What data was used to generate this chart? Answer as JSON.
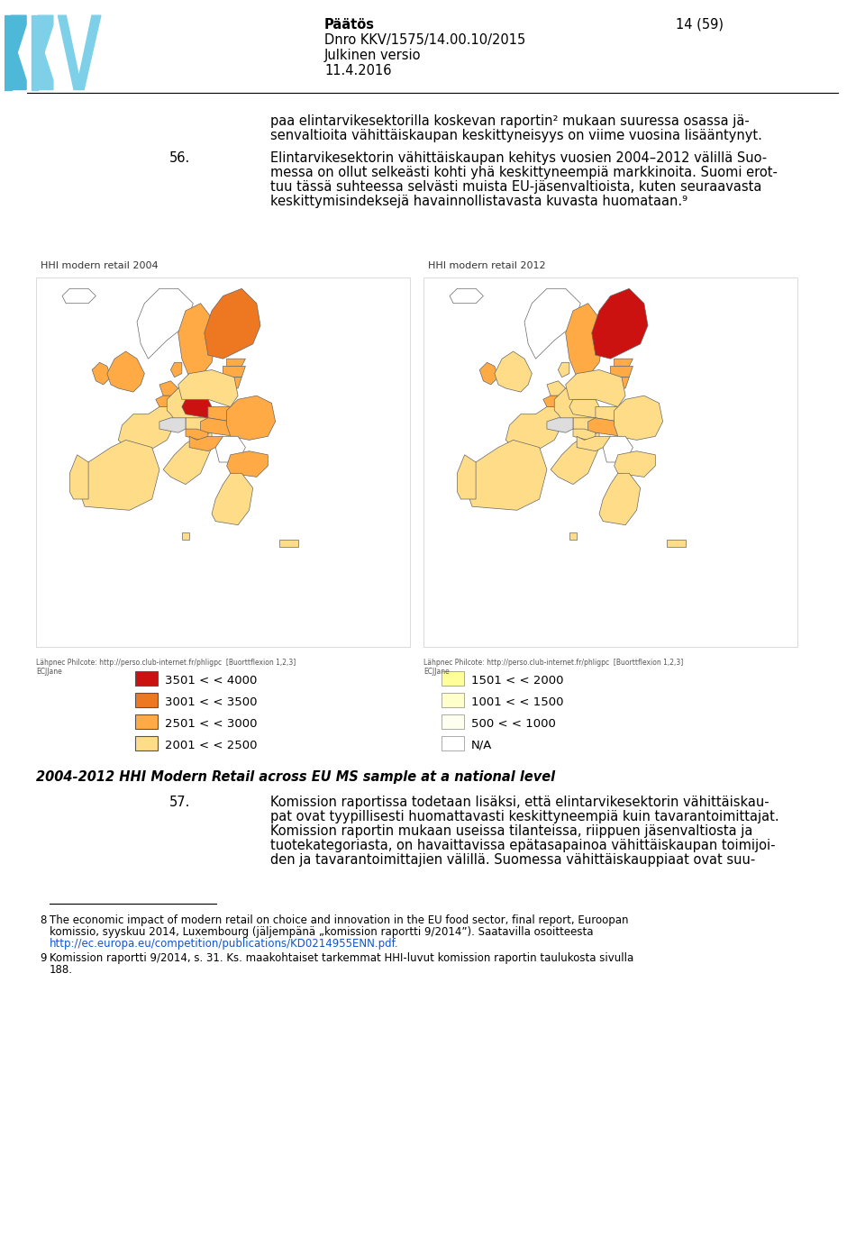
{
  "background_color": "#ffffff",
  "page_width": 9.6,
  "page_height": 13.73,
  "dpi": 100,
  "header": {
    "title_bold": "Päätös",
    "title_line2": "Dnro KKV/1575/14.00.10/2015",
    "title_line3": "Julkinen versio",
    "title_line4": "11.4.2016",
    "page_num": "14 (59)"
  },
  "map_label_left": "HHI modern retail 2004",
  "map_label_right": "HHI modern retail 2012",
  "source_text": "Lähpnec Philcote: http://perso.club-internet.fr/phligpc  [Buorttflexion 1,2,3]\nECJJane",
  "legend_left": [
    {
      "color": "#cc1111",
      "label": "3501 < < 4000"
    },
    {
      "color": "#ee7722",
      "label": "3001 < < 3500"
    },
    {
      "color": "#ffaa44",
      "label": "2501 < < 3000"
    },
    {
      "color": "#ffdd88",
      "label": "2001 < < 2500"
    }
  ],
  "legend_right": [
    {
      "color": "#ffff99",
      "label": "1501 < < 2000"
    },
    {
      "color": "#ffffcc",
      "label": "1001 < < 1500"
    },
    {
      "color": "#fffff0",
      "label": "500 < < 1000"
    },
    {
      "color": "#ffffff",
      "label": "N/A"
    }
  ],
  "map_caption": "2004-2012 HHI Modern Retail across EU MS sample at a national level",
  "body_text_1_lines": [
    "paa elintarvikesektorilla koskevan raportin² mukaan suuressa osassa jä-",
    "senvaltioita vähittäiskaupan keskittyneisyys on viime vuosina lisääntynyt."
  ],
  "para_56_num": "56.",
  "para_56_lines": [
    "Elintarvikesektorin vähittäiskaupan kehitys vuosien 2004–2012 välillä Suo-",
    "messa on ollut selkeästi kohti yhä keskittyneempiä markkinoita. Suomi erot-",
    "tuu tässä suhteessa selvästi muista EU-jäsenvaltioista, kuten seuraavasta",
    "keskittymisindeksejä havainnollistavasta kuvasta huomataan.⁹"
  ],
  "para_57_num": "57.",
  "para_57_lines": [
    "Komission raportissa todetaan lisäksi, että elintarvikesektorin vähittäiskau-",
    "pat ovat tyypillisesti huomattavasti keskittyneempiä kuin tavarantoimittajat.",
    "Komission raportin mukaan useissa tilanteissa, riippuen jäsenvaltiosta ja",
    "tuotekategoriasta, on havaittavissa epätasapainoa vähittäiskaupan toimijoi-",
    "den ja tavarantoimittajien välillä. Suomessa vähittäiskauppiaat ovat suu-"
  ],
  "footnote_8_num": "8",
  "footnote_8_lines": [
    "The economic impact of modern retail on choice and innovation in the EU food sector, final report, Euroopan",
    "komissio, syyskuu 2014, Luxembourg (jäljempänä „komission raportti 9/2014”). Saatavilla osoitteesta"
  ],
  "footnote_8_link": "http://ec.europa.eu/competition/publications/KD0214955ENN.pdf.",
  "footnote_9_num": "9",
  "footnote_9_lines": [
    "Komission raportti 9/2014, s. 31. Ks. maakohtaiset tarkemmat HHI-luvut komission raportin taulukosta sivulla",
    "188."
  ],
  "colors_2004": {
    "finland": "#ee7722",
    "sweden": "#ffaa44",
    "norway": "#ffffff",
    "denmark": "#ffaa44",
    "estonia": "#ffaa44",
    "latvia": "#ffaa44",
    "lithuania": "#ffaa44",
    "uk": "#ffaa44",
    "ireland": "#ffaa44",
    "netherlands": "#ffaa44",
    "belgium": "#ffaa44",
    "luxembourg": "#ffaa44",
    "germany": "#ffdd88",
    "france": "#ffdd88",
    "spain": "#ffdd88",
    "portugal": "#ffdd88",
    "italy": "#ffdd88",
    "austria": "#ffdd88",
    "czech": "#cc1111",
    "slovakia": "#ffaa44",
    "poland": "#ffdd88",
    "hungary": "#ffaa44",
    "romania": "#ffaa44",
    "bulgaria": "#ffaa44",
    "greece": "#ffdd88",
    "croatia": "#ffaa44",
    "slovenia": "#ffaa44",
    "serbia": "#ffffff",
    "malta": "#ffdd88",
    "cyprus": "#ffdd88",
    "iceland": "#ffffff"
  },
  "colors_2012": {
    "finland": "#cc1111",
    "sweden": "#ffaa44",
    "norway": "#ffffff",
    "denmark": "#ffdd88",
    "estonia": "#ffaa44",
    "latvia": "#ffaa44",
    "lithuania": "#ffaa44",
    "uk": "#ffdd88",
    "ireland": "#ffaa44",
    "netherlands": "#ffdd88",
    "belgium": "#ffaa44",
    "luxembourg": "#ffaa44",
    "germany": "#ffdd88",
    "france": "#ffdd88",
    "spain": "#ffdd88",
    "portugal": "#ffdd88",
    "italy": "#ffdd88",
    "austria": "#ffdd88",
    "czech": "#ffdd88",
    "slovakia": "#ffdd88",
    "poland": "#ffdd88",
    "hungary": "#ffaa44",
    "romania": "#ffdd88",
    "bulgaria": "#ffdd88",
    "greece": "#ffdd88",
    "croatia": "#ffdd88",
    "slovenia": "#ffdd88",
    "serbia": "#ffffff",
    "malta": "#ffdd88",
    "cyprus": "#ffdd88",
    "iceland": "#ffffff"
  }
}
